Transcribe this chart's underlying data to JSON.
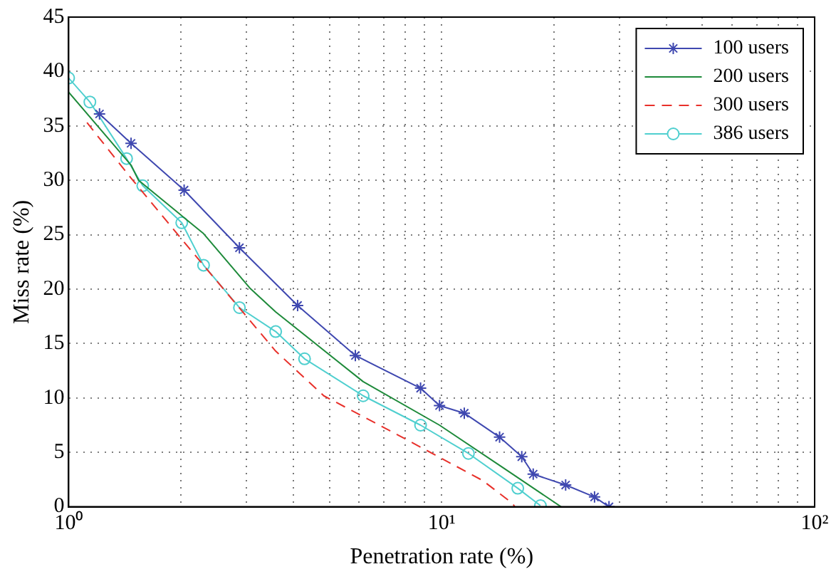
{
  "chart_data": {
    "type": "line",
    "xlabel": "Penetration rate (%)",
    "ylabel": "Miss rate (%)",
    "log": "x",
    "grid": true,
    "legend": "top right",
    "xlim": [
      1,
      100
    ],
    "xticks": [
      {
        "value": 1,
        "label": "10⁰"
      },
      {
        "value": 2,
        "label": null
      },
      {
        "value": 3,
        "label": null
      },
      {
        "value": 4,
        "label": null
      },
      {
        "value": 5,
        "label": null
      },
      {
        "value": 6,
        "label": null
      },
      {
        "value": 7,
        "label": null
      },
      {
        "value": 8,
        "label": null
      },
      {
        "value": 9,
        "label": null
      },
      {
        "value": 10,
        "label": "10¹"
      },
      {
        "value": 20,
        "label": null
      },
      {
        "value": 30,
        "label": null
      },
      {
        "value": 40,
        "label": null
      },
      {
        "value": 50,
        "label": null
      },
      {
        "value": 60,
        "label": null
      },
      {
        "value": 70,
        "label": null
      },
      {
        "value": 80,
        "label": null
      },
      {
        "value": 90,
        "label": null
      },
      {
        "value": 100,
        "label": "10²"
      }
    ],
    "ylim": [
      0,
      45
    ],
    "yticks": [
      0,
      5,
      10,
      15,
      20,
      25,
      30,
      35,
      40,
      45
    ],
    "series": [
      {
        "name": "100 users",
        "color": "#3f48b0",
        "marker": "cross",
        "line_style": "solid",
        "x": [
          1.21,
          1.47,
          2.04,
          2.87,
          4.11,
          5.87,
          8.78,
          9.87,
          11.5,
          14.3,
          16.4,
          17.6,
          21.5,
          25.7,
          28.1
        ],
        "values": [
          36.1,
          33.4,
          29.1,
          23.8,
          18.5,
          13.9,
          10.9,
          9.3,
          8.6,
          6.4,
          4.6,
          3.0,
          2.0,
          0.9,
          0
        ]
      },
      {
        "name": "200 users",
        "color": "#1e8a3a",
        "marker": "none",
        "line_style": "solid",
        "x": [
          1,
          1.47,
          1.54,
          2.3,
          3.06,
          3.59,
          6.16,
          9.87,
          14.6,
          20.9
        ],
        "values": [
          38.1,
          31.4,
          30.0,
          25.1,
          20.1,
          17.9,
          11.5,
          7.5,
          3.6,
          0
        ]
      },
      {
        "name": "300 users",
        "color": "#e8302a",
        "marker": "none",
        "line_style": "dashed",
        "x": [
          1.12,
          1.47,
          2.1,
          3.59,
          4.83,
          7.83,
          12.9,
          15.5,
          15.7
        ],
        "values": [
          35.3,
          30.2,
          23.8,
          14.3,
          10.2,
          6.4,
          2.4,
          0.3,
          0
        ]
      },
      {
        "name": "386 users",
        "color": "#4fcfcf",
        "marker": "circle",
        "line_style": "solid",
        "x": [
          1,
          1.14,
          1.43,
          1.58,
          2.01,
          2.3,
          2.87,
          3.59,
          4.29,
          6.16,
          8.78,
          11.8,
          16,
          18.4
        ],
        "values": [
          39.4,
          37.2,
          32.0,
          29.5,
          26.1,
          22.2,
          18.3,
          16.1,
          13.6,
          10.2,
          7.5,
          4.9,
          1.7,
          0.1
        ]
      }
    ]
  }
}
